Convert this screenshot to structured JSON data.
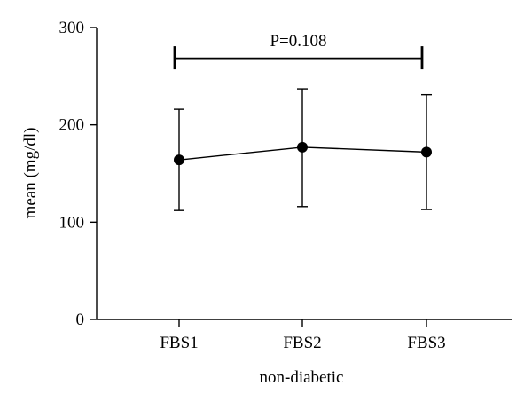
{
  "chart_data": {
    "type": "line",
    "xlabel": "non-diabetic",
    "ylabel": "mean (mg/dl)",
    "ylim": [
      0,
      300
    ],
    "yticks": [
      0,
      100,
      200,
      300
    ],
    "categories": [
      "FBS1",
      "FBS2",
      "FBS3"
    ],
    "series": [
      {
        "values": [
          164,
          177,
          172
        ],
        "error_low": [
          112,
          116,
          113
        ],
        "error_high": [
          216,
          237,
          231
        ],
        "color": "#000000"
      }
    ],
    "annotation": {
      "text": "P=0.108",
      "from_category": "FBS1",
      "to_category": "FBS3",
      "y": 268
    },
    "grid": false,
    "legend": "none"
  }
}
